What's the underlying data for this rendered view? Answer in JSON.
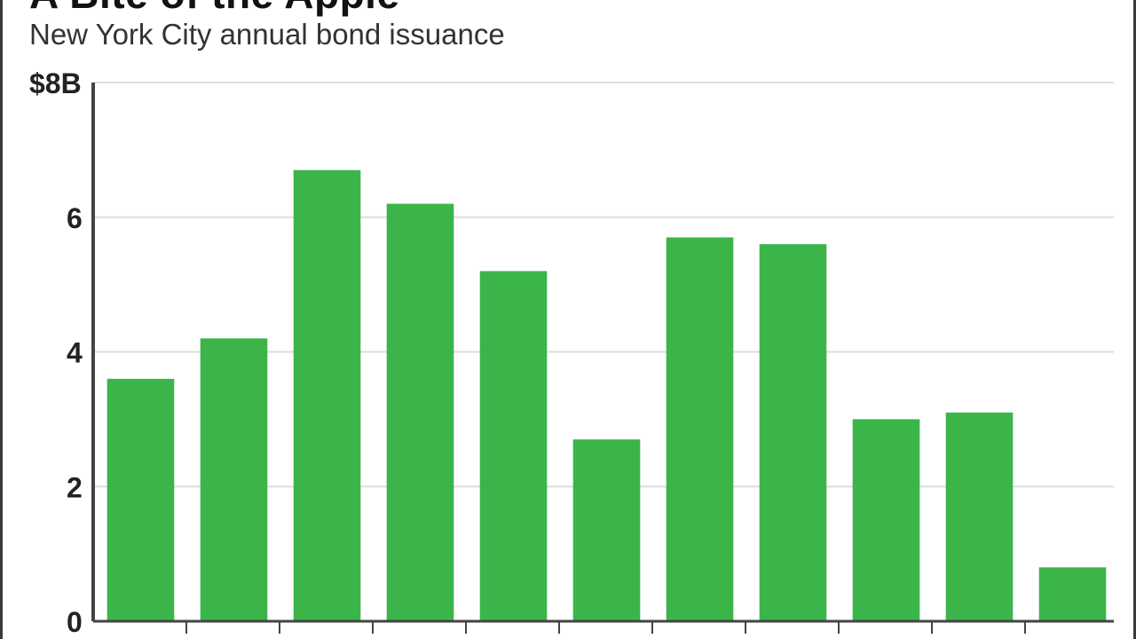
{
  "title": "A Bite of the Apple",
  "subtitle": "New York City annual bond issuance",
  "colors": {
    "bar": "#3bb54a",
    "grid": "#dddddd",
    "axis": "#444444",
    "frame": "#3a3a3a"
  },
  "chart_data": {
    "type": "bar",
    "title": "A Bite of the Apple",
    "subtitle": "New York City annual bond issuance",
    "xlabel": "",
    "ylabel": "",
    "categories": [
      "",
      "",
      "",
      "",
      "",
      "",
      "",
      "",
      "",
      "",
      ""
    ],
    "values": [
      3.6,
      4.2,
      6.7,
      6.2,
      5.2,
      2.7,
      5.7,
      5.6,
      3.0,
      3.1,
      0.8
    ],
    "ylim": [
      0,
      8
    ],
    "yticks": [
      0,
      2,
      4,
      6,
      8
    ],
    "ytick_labels": [
      "0",
      "2",
      "4",
      "6",
      "$8B"
    ],
    "grid": true,
    "legend": "none"
  }
}
